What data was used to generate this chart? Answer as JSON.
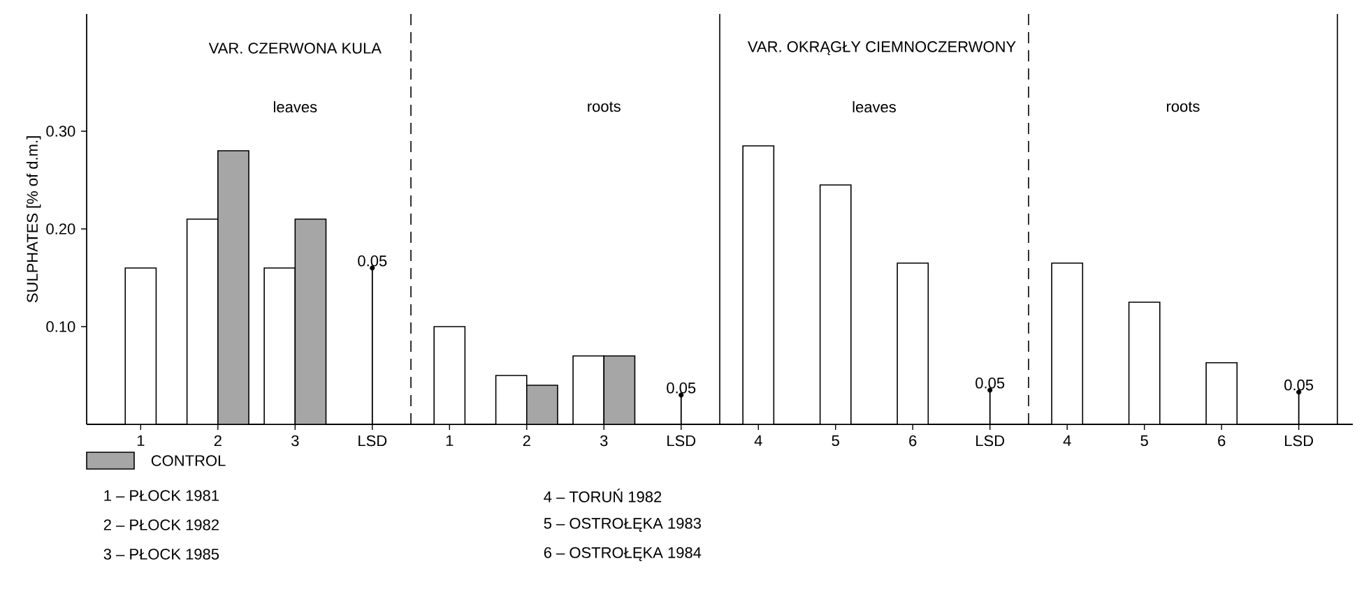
{
  "chart_data": {
    "type": "bar",
    "ylabel": "SULPHATES [% of d.m.]",
    "categories": [
      "1",
      "2",
      "3",
      "LSD",
      "1",
      "2",
      "3",
      "LSD",
      "4",
      "5",
      "6",
      "LSD",
      "4",
      "5",
      "6",
      "LSD"
    ],
    "series": [
      {
        "color": "#ffffff",
        "values": [
          0.16,
          0.21,
          0.16,
          null,
          0.1,
          0.05,
          0.07,
          null,
          0.285,
          0.245,
          0.165,
          null,
          0.165,
          0.125,
          0.063,
          null
        ]
      },
      {
        "name": "CONTROL",
        "color": "#a6a6a6",
        "values": [
          null,
          0.28,
          0.21,
          null,
          null,
          0.04,
          0.07,
          null,
          null,
          null,
          null,
          null,
          null,
          null,
          null,
          null
        ]
      },
      {
        "type": "lollipop",
        "color": "#000000",
        "values": [
          null,
          null,
          null,
          0.16,
          null,
          null,
          null,
          0.03,
          null,
          null,
          null,
          0.035,
          null,
          null,
          null,
          0.033
        ]
      }
    ],
    "ylim": [
      0,
      0.42
    ],
    "yticks": [
      {
        "value": 0.1,
        "label": "0.10"
      },
      {
        "value": 0.2,
        "label": "0.20"
      },
      {
        "value": 0.3,
        "label": "0.30"
      }
    ],
    "legend": "bottom left",
    "grid": false,
    "annotations": [
      "VAR.  CZERWONA  KULA",
      "leaves",
      "roots",
      "VAR. OKRĄGŁY  CIEMNOCZERWONY",
      "leaves",
      "roots",
      "1 – PŁOCK 1981",
      "2 – PŁOCK 1982",
      "3 – PŁOCK 1985",
      "4 – TORUŃ 1982",
      "5 – OSTROŁĘKA 1983",
      "6 – OSTROŁĘKA 1984",
      "0.05",
      "0.05",
      "0.05",
      "0.05"
    ]
  }
}
